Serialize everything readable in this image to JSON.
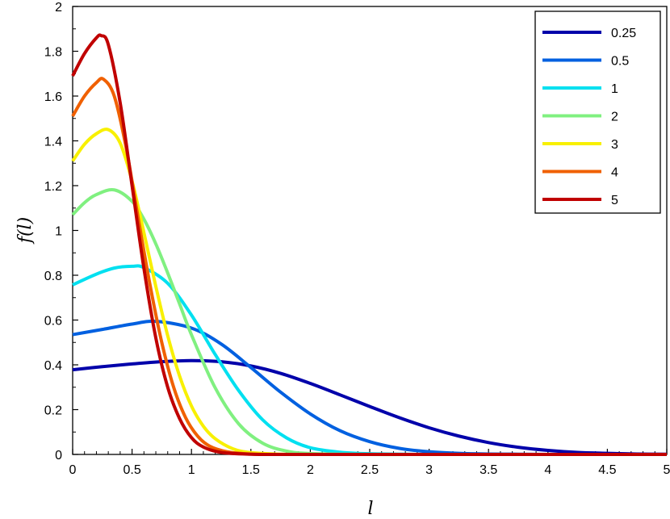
{
  "chart_data": {
    "type": "line",
    "title": "",
    "xlabel": "l",
    "ylabel": "f(l)",
    "xlim": [
      0,
      5
    ],
    "ylim": [
      0,
      2
    ],
    "x_ticks": [
      "0",
      "0.5",
      "1",
      "1.5",
      "2",
      "2.5",
      "3",
      "3.5",
      "4",
      "4.5",
      "5"
    ],
    "y_ticks": [
      "0",
      "0.2",
      "0.4",
      "0.6",
      "0.8",
      "1",
      "1.2",
      "1.4",
      "1.6",
      "1.8",
      "2"
    ],
    "grid": false,
    "legend_position": "top-right",
    "series": [
      {
        "name": "0.25",
        "color": "#0000aa",
        "x": [
          0,
          0.25,
          0.5,
          0.75,
          1,
          1.25,
          1.5,
          1.75,
          2,
          2.25,
          2.5,
          2.75,
          3,
          3.25,
          3.5,
          3.75,
          4,
          4.25,
          4.5,
          4.75,
          5
        ],
        "y": [
          0.378,
          0.392,
          0.404,
          0.414,
          0.419,
          0.414,
          0.395,
          0.362,
          0.317,
          0.266,
          0.214,
          0.164,
          0.119,
          0.082,
          0.053,
          0.032,
          0.018,
          0.009,
          0.005,
          0.002,
          0.001
        ]
      },
      {
        "name": "0.5",
        "color": "#0060e0",
        "x": [
          0,
          0.25,
          0.5,
          0.7,
          1,
          1.25,
          1.5,
          1.75,
          2,
          2.25,
          2.5,
          2.75,
          3,
          3.25,
          3.5,
          3.75,
          4,
          4.25,
          4.5,
          4.75,
          5
        ],
        "y": [
          0.535,
          0.558,
          0.582,
          0.594,
          0.564,
          0.493,
          0.388,
          0.278,
          0.181,
          0.106,
          0.057,
          0.027,
          0.012,
          0.005,
          0.002,
          0.001,
          0,
          0,
          0,
          0,
          0
        ]
      },
      {
        "name": "1",
        "color": "#00e0f0",
        "x": [
          0,
          0.2,
          0.35,
          0.5,
          0.6,
          0.8,
          1,
          1.2,
          1.4,
          1.6,
          1.8,
          2,
          2.25,
          2.5,
          3,
          3.5,
          4,
          4.5,
          5
        ],
        "y": [
          0.757,
          0.805,
          0.832,
          0.84,
          0.834,
          0.764,
          0.622,
          0.446,
          0.283,
          0.154,
          0.074,
          0.03,
          0.01,
          0.003,
          0,
          0,
          0,
          0,
          0
        ]
      },
      {
        "name": "2",
        "color": "#80f080",
        "x": [
          0,
          0.1,
          0.2,
          0.35,
          0.5,
          0.6,
          0.7,
          0.8,
          0.9,
          1,
          1.2,
          1.4,
          1.6,
          1.8,
          2,
          2.5,
          3,
          4,
          5
        ],
        "y": [
          1.07,
          1.124,
          1.16,
          1.181,
          1.13,
          1.05,
          0.94,
          0.81,
          0.672,
          0.534,
          0.297,
          0.135,
          0.05,
          0.015,
          0.004,
          0,
          0,
          0,
          0
        ]
      },
      {
        "name": "3",
        "color": "#f8f000",
        "x": [
          0,
          0.1,
          0.2,
          0.3,
          0.4,
          0.5,
          0.6,
          0.7,
          0.8,
          0.9,
          1,
          1.1,
          1.2,
          1.35,
          1.5,
          1.75,
          2,
          3,
          4,
          5
        ],
        "y": [
          1.31,
          1.385,
          1.432,
          1.45,
          1.39,
          1.22,
          0.99,
          0.75,
          0.53,
          0.35,
          0.216,
          0.126,
          0.07,
          0.025,
          0.008,
          0.001,
          0,
          0,
          0,
          0
        ]
      },
      {
        "name": "4",
        "color": "#f06000",
        "x": [
          0,
          0.1,
          0.2,
          0.26,
          0.35,
          0.45,
          0.55,
          0.65,
          0.75,
          0.85,
          0.95,
          1.05,
          1.15,
          1.3,
          1.5,
          1.75,
          2,
          3,
          4,
          5
        ],
        "y": [
          1.51,
          1.6,
          1.66,
          1.675,
          1.6,
          1.37,
          1.06,
          0.76,
          0.5,
          0.3,
          0.165,
          0.083,
          0.038,
          0.012,
          0.002,
          0,
          0,
          0,
          0,
          0
        ]
      },
      {
        "name": "5",
        "color": "#c00000",
        "x": [
          0,
          0.1,
          0.2,
          0.24,
          0.3,
          0.4,
          0.5,
          0.6,
          0.7,
          0.8,
          0.9,
          1,
          1.1,
          1.25,
          1.5,
          1.75,
          2,
          3,
          4,
          5
        ],
        "y": [
          1.69,
          1.79,
          1.86,
          1.87,
          1.83,
          1.57,
          1.2,
          0.83,
          0.52,
          0.3,
          0.16,
          0.075,
          0.033,
          0.009,
          0.001,
          0,
          0,
          0,
          0,
          0
        ]
      }
    ]
  }
}
